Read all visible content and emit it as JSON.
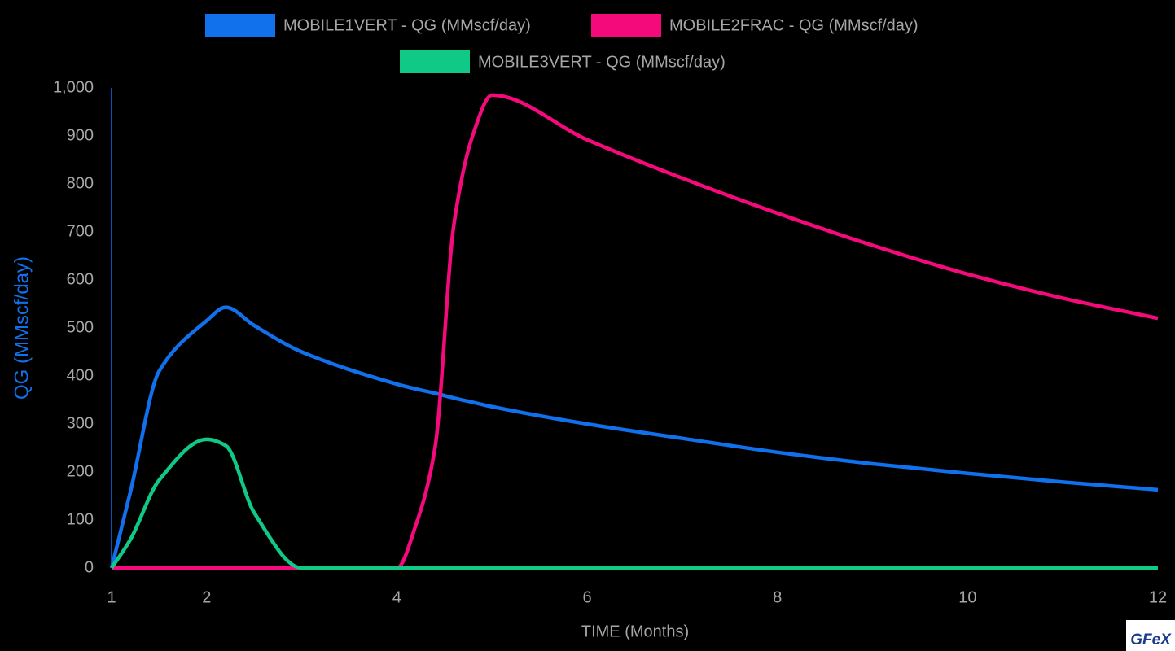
{
  "chart_data": {
    "type": "line",
    "x_label": "TIME (Months)",
    "y_label": "QG (MMscf/day)",
    "x": [
      1,
      1.2,
      1.5,
      2,
      2.2,
      2.5,
      3,
      4,
      4.2,
      4.4,
      4.6,
      4.8,
      5,
      6,
      7,
      8,
      9,
      10,
      11,
      12
    ],
    "series": [
      {
        "name": "MOBILE1VERT - QG (MMscf/day)",
        "color": "#1170ec",
        "values": [
          0,
          160,
          410,
          515,
          543,
          505,
          450,
          383,
          373,
          364,
          354,
          345,
          336,
          300,
          270,
          241,
          217,
          197,
          179,
          163
        ]
      },
      {
        "name": "MOBILE2FRAC - QG (MMscf/day)",
        "color": "#f50a7c",
        "values": [
          0,
          0,
          0,
          0,
          0,
          0,
          0,
          0,
          90,
          250,
          717,
          903,
          985,
          892,
          812,
          739,
          672,
          612,
          562,
          520
        ]
      },
      {
        "name": "MOBILE3VERT - QG (MMscf/day)",
        "color": "#10c987",
        "values": [
          0,
          60,
          183,
          268,
          255,
          115,
          0,
          0,
          0,
          0,
          0,
          0,
          0,
          0,
          0,
          0,
          0,
          0,
          0,
          0
        ]
      }
    ],
    "xlim": [
      1,
      12
    ],
    "xticks": [
      1,
      2,
      4,
      6,
      8,
      10,
      12
    ],
    "ylim": [
      0,
      1000
    ],
    "yticks": [
      0,
      100,
      200,
      300,
      400,
      500,
      600,
      700,
      800,
      900,
      {
        "value": 1000,
        "label": "1,000"
      }
    ],
    "grid": false,
    "legend": "top",
    "y_label_color": "#1170ec"
  },
  "logo": "GFeX"
}
